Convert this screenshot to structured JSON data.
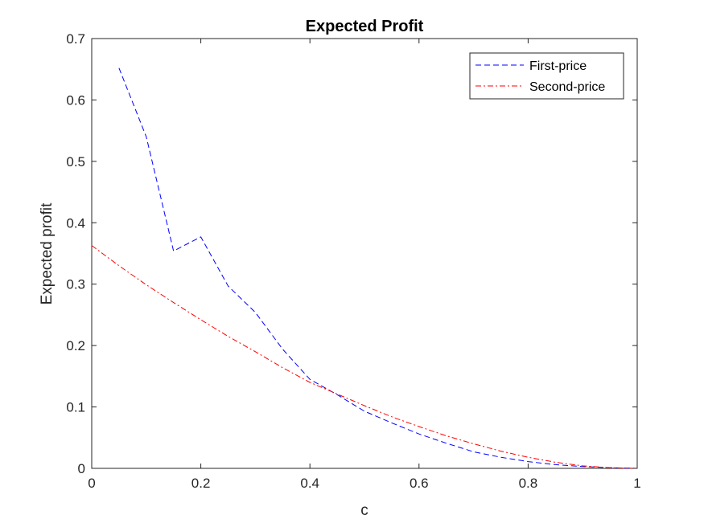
{
  "chart_data": {
    "type": "line",
    "title": "Expected Profit",
    "xlabel": "c",
    "ylabel": "Expected profit",
    "xlim": [
      0,
      1
    ],
    "ylim": [
      0,
      0.7
    ],
    "xticks": [
      0,
      0.2,
      0.4,
      0.6,
      0.8,
      1
    ],
    "xtick_labels": [
      "0",
      "0.2",
      "0.4",
      "0.6",
      "0.8",
      "1"
    ],
    "yticks": [
      0,
      0.1,
      0.2,
      0.3,
      0.4,
      0.5,
      0.6,
      0.7
    ],
    "ytick_labels": [
      "0",
      "0.1",
      "0.2",
      "0.3",
      "0.4",
      "0.5",
      "0.6",
      "0.7"
    ],
    "grid": false,
    "legend_position": "top-right",
    "series": [
      {
        "name": "First-price",
        "color": "#0000ff",
        "style": "dashed",
        "x": [
          0.05,
          0.1,
          0.15,
          0.2,
          0.25,
          0.3,
          0.35,
          0.4,
          0.45,
          0.5,
          0.55,
          0.6,
          0.65,
          0.7,
          0.75,
          0.8,
          0.85,
          0.9,
          0.95,
          1.0
        ],
        "y": [
          0.652,
          0.54,
          0.354,
          0.377,
          0.297,
          0.254,
          0.194,
          0.145,
          0.12,
          0.093,
          0.074,
          0.056,
          0.041,
          0.027,
          0.018,
          0.011,
          0.006,
          0.003,
          0.001,
          0.0
        ]
      },
      {
        "name": "Second-price",
        "color": "#ff0000",
        "style": "dashdot",
        "x": [
          0,
          0.05,
          0.1,
          0.15,
          0.2,
          0.25,
          0.3,
          0.35,
          0.4,
          0.45,
          0.5,
          0.55,
          0.6,
          0.65,
          0.7,
          0.75,
          0.8,
          0.85,
          0.9,
          0.95,
          1.0
        ],
        "y": [
          0.363,
          0.33,
          0.299,
          0.27,
          0.242,
          0.215,
          0.19,
          0.164,
          0.14,
          0.121,
          0.102,
          0.084,
          0.068,
          0.053,
          0.04,
          0.028,
          0.018,
          0.01,
          0.004,
          0.001,
          0.0
        ]
      }
    ]
  }
}
